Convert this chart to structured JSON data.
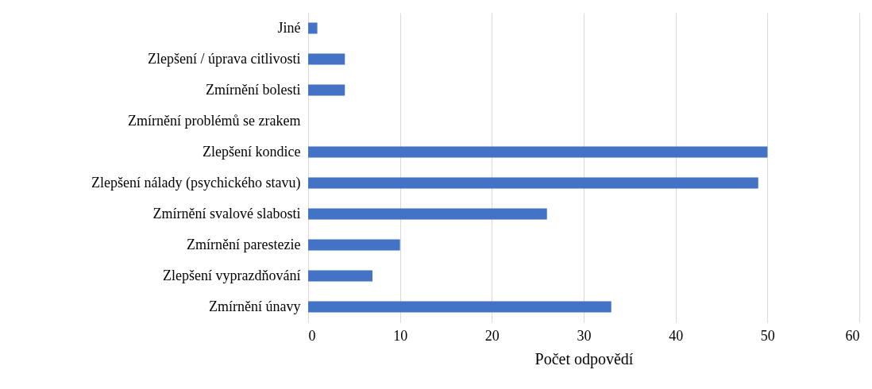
{
  "chart_data": {
    "type": "bar",
    "orientation": "horizontal",
    "xlabel": "Počet odpovědí",
    "categories": [
      "Jiné",
      "Zlepšení / úprava citlivosti",
      "Zmírnění bolesti",
      "Zmírnění problémů se zrakem",
      "Zlepšení kondice",
      "Zlepšení nálady (psychického stavu)",
      "Zmírnění svalové slabosti",
      "Zmírnění parestezie",
      "Zlepšení vyprazdňování",
      "Zmírnění únavy"
    ],
    "values": [
      1,
      4,
      4,
      0,
      50,
      49,
      26,
      10,
      7,
      33
    ],
    "color": "#4472c4",
    "xlim": [
      0,
      60
    ],
    "xticks": [
      0,
      10,
      20,
      30,
      40,
      50,
      60
    ],
    "grid": "x"
  }
}
